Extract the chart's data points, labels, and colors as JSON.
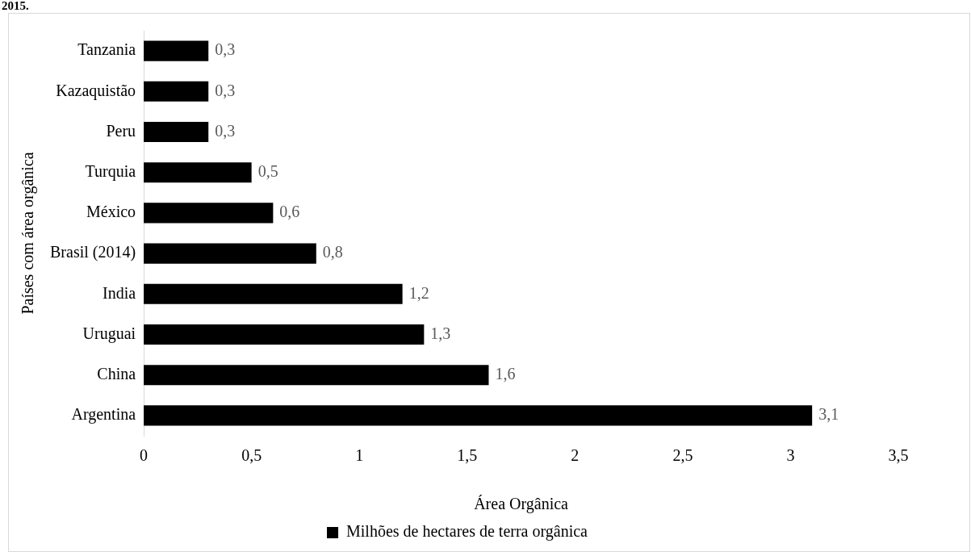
{
  "chart_data": {
    "type": "bar",
    "orientation": "horizontal",
    "annotations": [
      "2015."
    ],
    "categories": [
      "Tanzania",
      "Kazaquistão",
      "Peru",
      "Turquia",
      "México",
      "Brasil (2014)",
      "India",
      "Uruguai",
      "China",
      "Argentina"
    ],
    "series": [
      {
        "name": "Milhões de hectares de terra orgânica",
        "color": "#000000",
        "values": [
          0.3,
          0.3,
          0.3,
          0.5,
          0.6,
          0.8,
          1.2,
          1.3,
          1.6,
          3.1
        ],
        "value_labels": [
          "0,3",
          "0,3",
          "0,3",
          "0,5",
          "0,6",
          "0,8",
          "1,2",
          "1,3",
          "1,6",
          "3,1"
        ]
      }
    ],
    "xlim": [
      0,
      3.5
    ],
    "xticks": [
      0,
      {
        "value": 0.5,
        "label": "0,5"
      },
      1,
      {
        "value": 1.5,
        "label": "1,5"
      },
      2,
      {
        "value": 2.5,
        "label": "2,5"
      },
      3,
      {
        "value": 3.5,
        "label": "3,5"
      }
    ],
    "xlabel": "Área Orgânica",
    "ylabel": "Países com área orgânica",
    "grid": false,
    "legend": "bottom"
  }
}
